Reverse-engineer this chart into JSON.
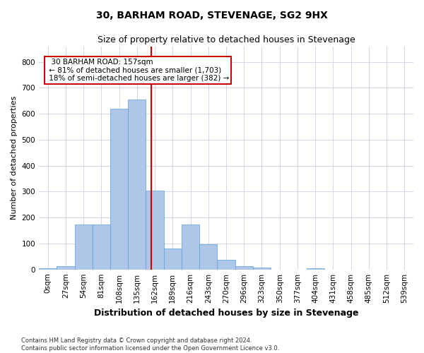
{
  "title": "30, BARHAM ROAD, STEVENAGE, SG2 9HX",
  "subtitle": "Size of property relative to detached houses in Stevenage",
  "xlabel": "Distribution of detached houses by size in Stevenage",
  "ylabel": "Number of detached properties",
  "bar_color": "#aec6e8",
  "bar_edge_color": "#5a9fd4",
  "categories": [
    "0sqm",
    "27sqm",
    "54sqm",
    "81sqm",
    "108sqm",
    "135sqm",
    "162sqm",
    "189sqm",
    "216sqm",
    "243sqm",
    "270sqm",
    "296sqm",
    "323sqm",
    "350sqm",
    "377sqm",
    "404sqm",
    "431sqm",
    "458sqm",
    "485sqm",
    "512sqm",
    "539sqm"
  ],
  "values": [
    5,
    13,
    172,
    172,
    620,
    655,
    305,
    82,
    173,
    98,
    38,
    13,
    8,
    0,
    0,
    5,
    0,
    0,
    0,
    0,
    0
  ],
  "ylim": [
    0,
    860
  ],
  "yticks": [
    0,
    100,
    200,
    300,
    400,
    500,
    600,
    700,
    800
  ],
  "property_line_x": 5.815,
  "property_line_color": "#cc0000",
  "annotation_text": "  30 BARHAM ROAD: 157sqm  \n ← 81% of detached houses are smaller (1,703)\n 18% of semi-detached houses are larger (382) →",
  "annotation_box_color": "#ffffff",
  "annotation_box_edge": "#cc0000",
  "footer_line1": "Contains HM Land Registry data © Crown copyright and database right 2024.",
  "footer_line2": "Contains public sector information licensed under the Open Government Licence v3.0.",
  "background_color": "#ffffff",
  "grid_color": "#d0d8e8",
  "title_fontsize": 10,
  "subtitle_fontsize": 9,
  "xlabel_fontsize": 9,
  "ylabel_fontsize": 8,
  "tick_fontsize": 7.5,
  "annotation_fontsize": 7.5
}
